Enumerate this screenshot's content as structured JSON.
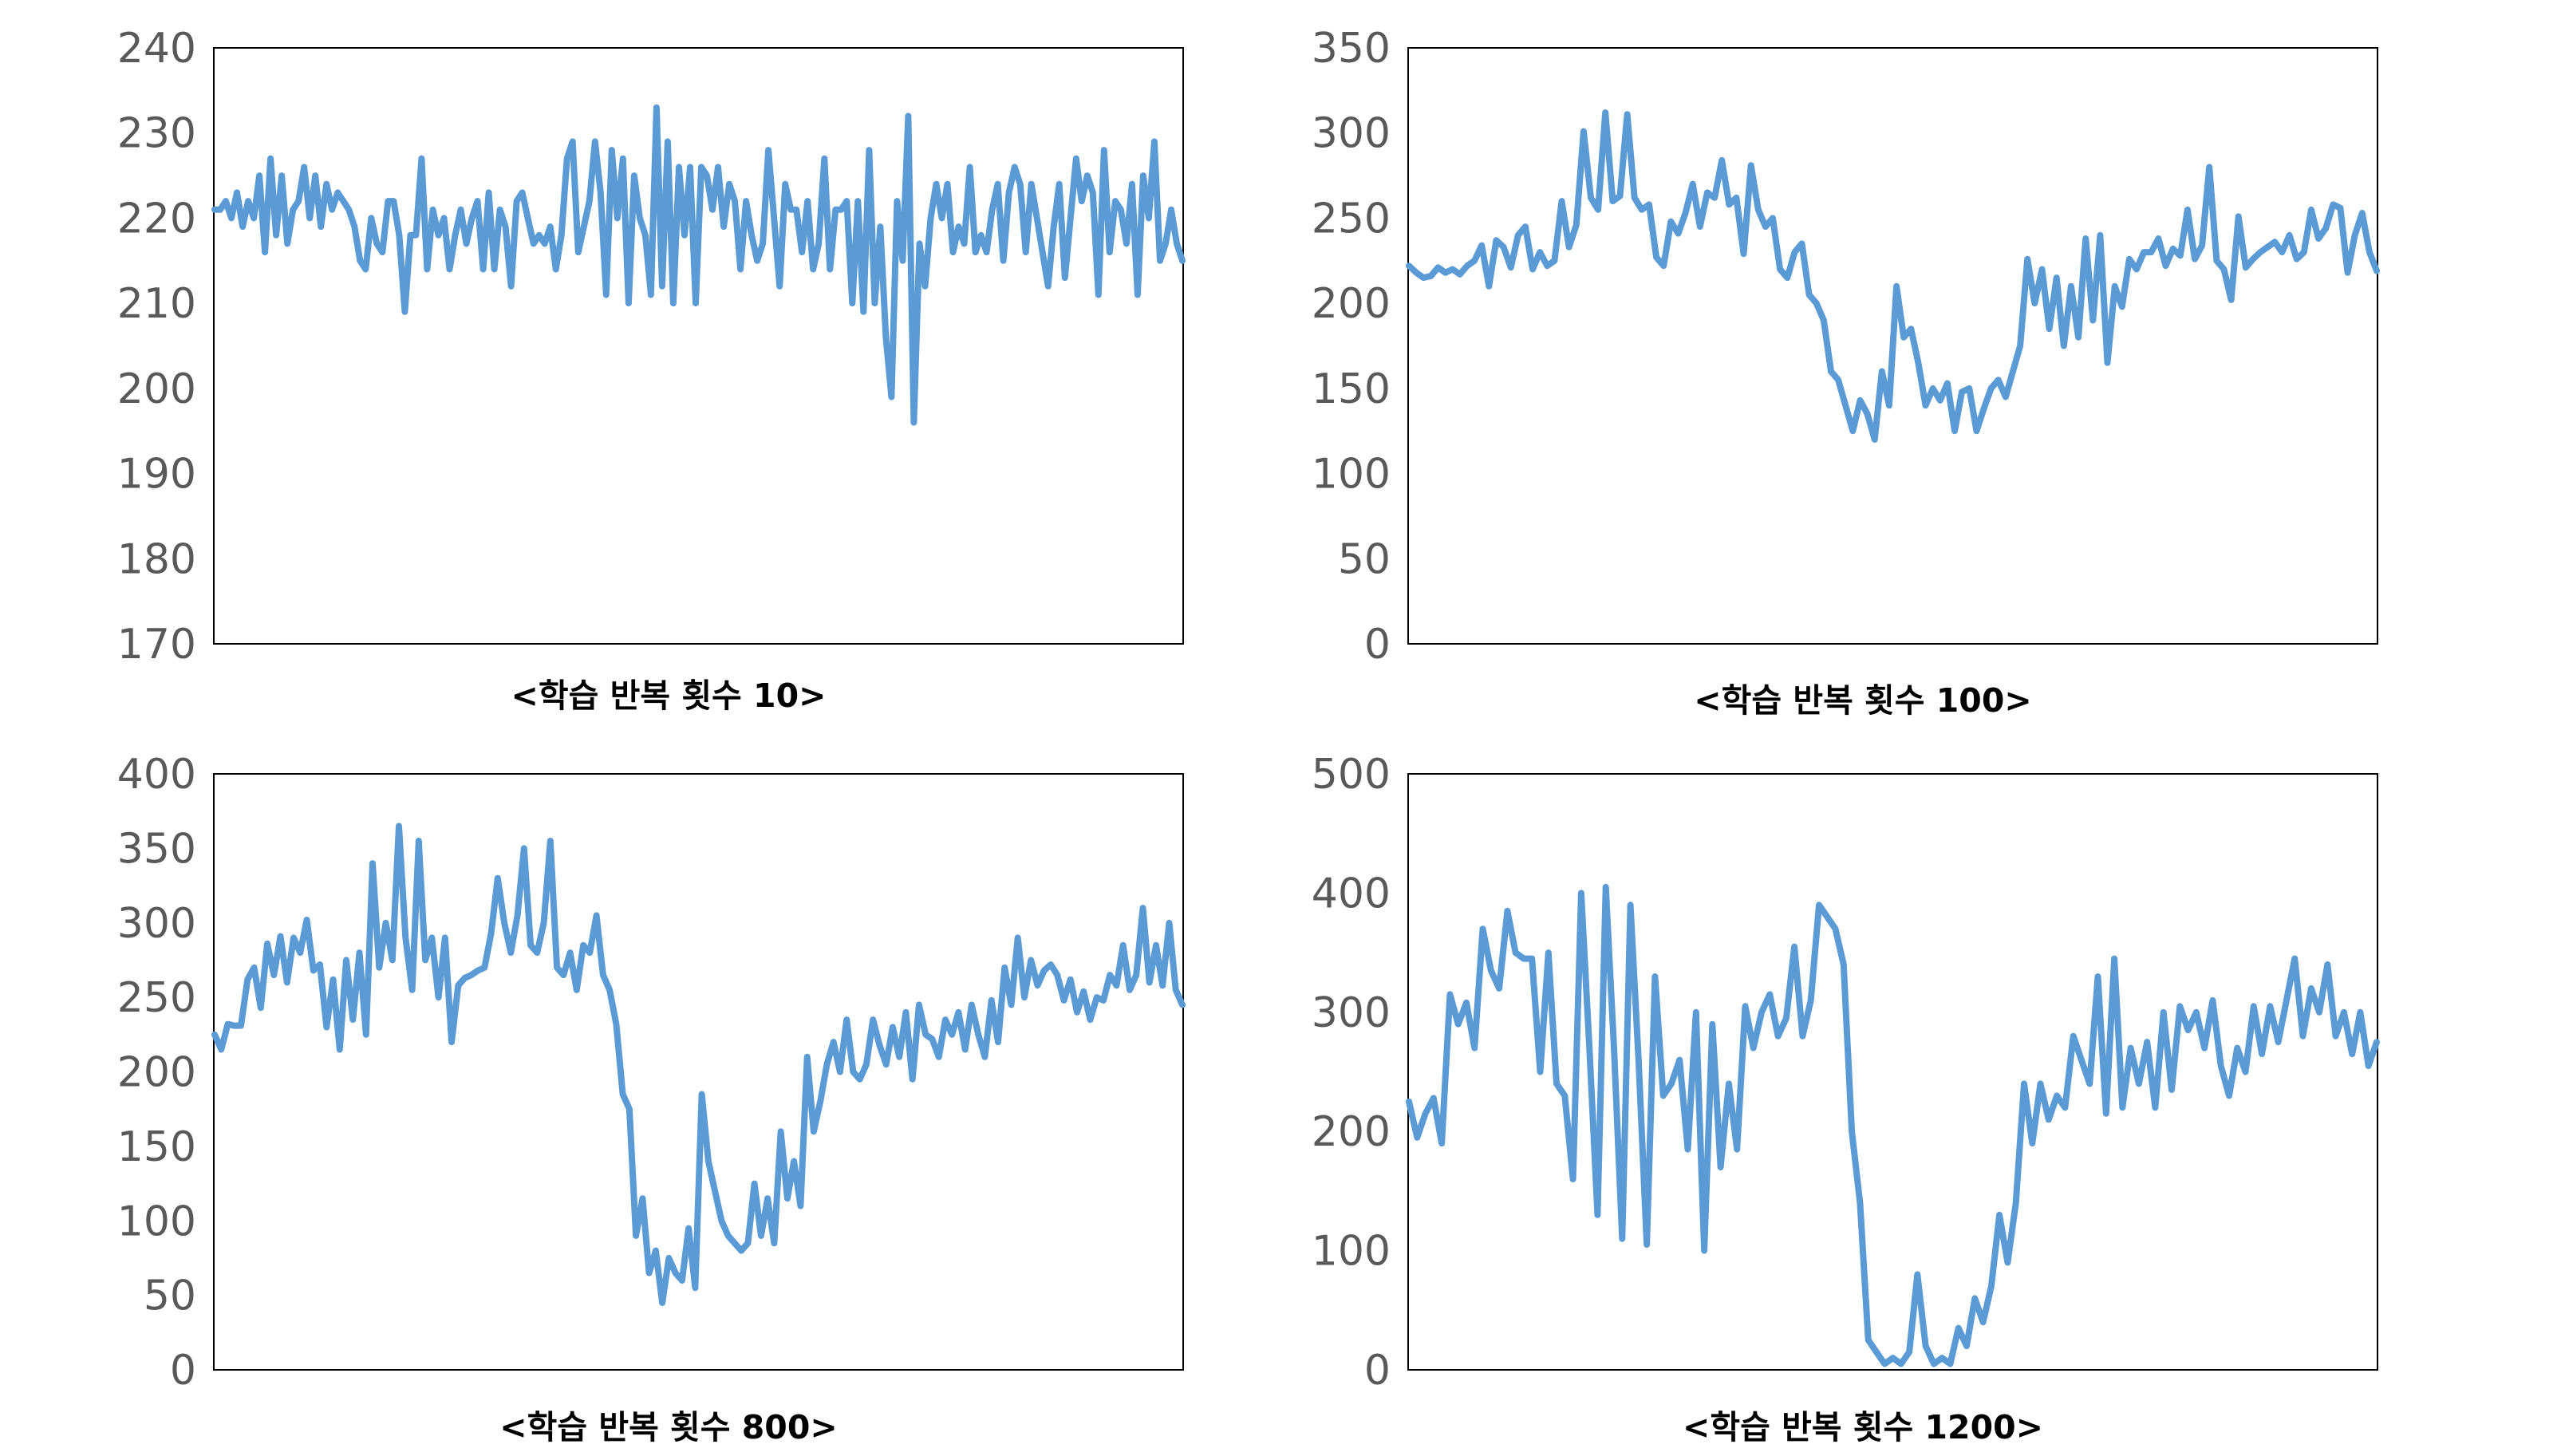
{
  "colors": {
    "line": "#5b9bd5",
    "frame": "#000000",
    "tick_text": "#595959"
  },
  "chart_data": [
    {
      "type": "line",
      "caption": "<학습 반복 횟수 10>",
      "ylim": [
        170,
        240
      ],
      "yticks": [
        170,
        180,
        190,
        200,
        210,
        220,
        230,
        240
      ],
      "grid": false,
      "values": [
        221,
        221,
        222,
        220,
        223,
        219,
        222,
        220,
        225,
        216,
        227,
        218,
        225,
        217,
        221,
        222,
        226,
        220,
        225,
        219,
        224,
        221,
        223,
        222,
        221,
        219,
        215,
        214,
        220,
        217,
        216,
        222,
        222,
        218,
        209,
        218,
        218,
        227,
        214,
        221,
        218,
        220,
        214,
        218,
        221,
        217,
        220,
        222,
        214,
        223,
        214,
        221,
        219,
        212,
        222,
        223,
        220,
        217,
        218,
        217,
        219,
        214,
        218,
        227,
        229,
        216,
        219,
        222,
        229,
        223,
        211,
        228,
        220,
        227,
        210,
        225,
        220,
        218,
        211,
        233,
        212,
        229,
        210,
        226,
        218,
        226,
        210,
        226,
        225,
        221,
        226,
        219,
        224,
        222,
        214,
        222,
        218,
        215,
        217,
        228,
        220,
        212,
        224,
        221,
        221,
        216,
        222,
        214,
        217,
        227,
        214,
        221,
        221,
        222,
        210,
        222,
        209,
        228,
        210,
        219,
        206,
        199,
        222,
        215,
        232,
        196,
        217,
        212,
        220,
        224,
        220,
        224,
        216,
        219,
        217,
        226,
        216,
        218,
        216,
        221,
        224,
        215,
        223,
        226,
        224,
        216,
        224,
        220,
        216,
        212,
        219,
        224,
        213,
        220,
        227,
        222,
        225,
        223,
        211,
        228,
        216,
        222,
        221,
        217,
        224,
        211,
        225,
        220,
        229,
        215,
        217,
        221,
        217,
        215
      ]
    },
    {
      "type": "line",
      "caption": "<학습 반복 횟수 100>",
      "ylim": [
        0,
        350
      ],
      "yticks": [
        0,
        50,
        100,
        150,
        200,
        250,
        300,
        350
      ],
      "grid": false,
      "values": [
        222,
        218,
        215,
        216,
        221,
        218,
        220,
        217,
        222,
        225,
        234,
        210,
        237,
        233,
        221,
        240,
        245,
        220,
        230,
        222,
        225,
        260,
        233,
        246,
        301,
        262,
        255,
        312,
        260,
        263,
        311,
        262,
        255,
        258,
        227,
        222,
        248,
        241,
        253,
        270,
        245,
        265,
        262,
        284,
        258,
        262,
        229,
        281,
        255,
        245,
        250,
        220,
        215,
        230,
        235,
        205,
        200,
        190,
        160,
        155,
        140,
        125,
        143,
        135,
        120,
        160,
        140,
        210,
        180,
        185,
        165,
        140,
        150,
        143,
        153,
        125,
        148,
        150,
        125,
        138,
        150,
        155,
        145,
        160,
        175,
        226,
        200,
        220,
        185,
        215,
        175,
        210,
        180,
        238,
        190,
        240,
        165,
        210,
        198,
        226,
        220,
        230,
        230,
        238,
        222,
        232,
        228,
        255,
        226,
        234,
        280,
        225,
        220,
        202,
        251,
        221,
        226,
        230,
        233,
        236,
        230,
        240,
        226,
        230,
        255,
        238,
        244,
        258,
        256,
        218,
        240,
        253,
        230,
        219
      ]
    },
    {
      "type": "line",
      "caption": "<학습 반복 횟수 800>",
      "ylim": [
        0,
        400
      ],
      "yticks": [
        0,
        50,
        100,
        150,
        200,
        250,
        300,
        350,
        400
      ],
      "grid": false,
      "values": [
        225,
        215,
        232,
        231,
        231,
        262,
        270,
        243,
        286,
        265,
        291,
        260,
        290,
        280,
        302,
        268,
        272,
        230,
        262,
        215,
        275,
        235,
        280,
        225,
        340,
        270,
        300,
        275,
        365,
        290,
        255,
        355,
        275,
        290,
        250,
        290,
        220,
        258,
        263,
        265,
        268,
        270,
        293,
        330,
        300,
        280,
        305,
        350,
        285,
        280,
        300,
        355,
        270,
        265,
        280,
        255,
        285,
        280,
        305,
        265,
        255,
        232,
        185,
        175,
        90,
        115,
        65,
        80,
        45,
        75,
        65,
        60,
        95,
        55,
        185,
        140,
        120,
        100,
        90,
        85,
        80,
        85,
        125,
        90,
        115,
        85,
        160,
        115,
        140,
        110,
        210,
        160,
        180,
        205,
        220,
        200,
        235,
        200,
        195,
        205,
        235,
        218,
        205,
        230,
        210,
        240,
        195,
        245,
        225,
        222,
        210,
        235,
        225,
        240,
        215,
        245,
        225,
        210,
        248,
        220,
        270,
        245,
        290,
        250,
        275,
        258,
        268,
        272,
        265,
        248,
        262,
        240,
        254,
        235,
        250,
        248,
        265,
        258,
        285,
        255,
        265,
        310,
        260,
        285,
        258,
        300,
        255,
        245
      ]
    },
    {
      "type": "line",
      "caption": "<학습 반복 횟수 1200>",
      "ylim": [
        0,
        500
      ],
      "yticks": [
        0,
        100,
        200,
        300,
        400,
        500
      ],
      "grid": false,
      "values": [
        225,
        195,
        215,
        228,
        190,
        315,
        290,
        308,
        270,
        370,
        335,
        320,
        385,
        350,
        345,
        345,
        250,
        350,
        240,
        230,
        160,
        400,
        270,
        130,
        405,
        270,
        110,
        390,
        260,
        105,
        330,
        230,
        240,
        260,
        185,
        300,
        100,
        290,
        170,
        240,
        185,
        305,
        270,
        300,
        315,
        280,
        295,
        355,
        280,
        310,
        390,
        380,
        370,
        340,
        200,
        140,
        25,
        15,
        5,
        10,
        5,
        15,
        80,
        20,
        5,
        10,
        5,
        35,
        20,
        60,
        40,
        70,
        130,
        90,
        140,
        240,
        190,
        240,
        210,
        230,
        220,
        280,
        260,
        240,
        330,
        215,
        345,
        220,
        270,
        240,
        275,
        220,
        300,
        235,
        305,
        285,
        300,
        270,
        310,
        255,
        230,
        270,
        250,
        305,
        265,
        305,
        275,
        310,
        345,
        280,
        320,
        300,
        340,
        280,
        300,
        265,
        300,
        255,
        275
      ]
    }
  ]
}
